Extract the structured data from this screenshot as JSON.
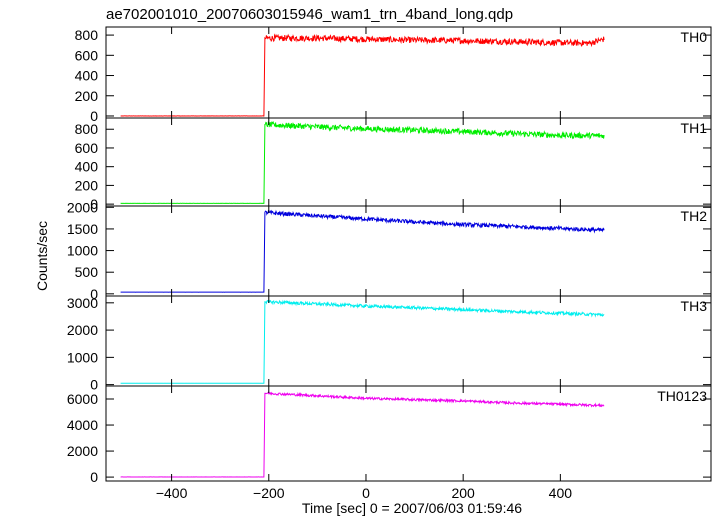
{
  "chart_data": {
    "type": "line",
    "title": "ae702001010_20070603015946_wam1_trn_4band_long.qdp",
    "xlabel": "Time [sec] 0 = 2007/06/03 01:59:46",
    "ylabel": "Counts/sec",
    "xlim": [
      -535,
      710
    ],
    "xticks": [
      -400,
      -200,
      0,
      200,
      400
    ],
    "grid": false,
    "panels": [
      {
        "name": "TH0",
        "color": "#ff0000",
        "ylim": [
          -20,
          880
        ],
        "yticks": [
          0,
          200,
          400,
          600,
          800
        ],
        "x": [
          -505,
          -210,
          -208,
          -100,
          0,
          100,
          200,
          300,
          400,
          460,
          490
        ],
        "y": [
          0,
          0,
          770,
          770,
          760,
          750,
          745,
          735,
          725,
          720,
          760
        ],
        "noise": 30
      },
      {
        "name": "TH1",
        "color": "#00ee00",
        "ylim": [
          -20,
          920
        ],
        "yticks": [
          0,
          200,
          400,
          600,
          800
        ],
        "x": [
          -505,
          -210,
          -208,
          -100,
          0,
          100,
          200,
          300,
          400,
          490
        ],
        "y": [
          8,
          8,
          850,
          825,
          805,
          790,
          775,
          755,
          735,
          730
        ],
        "noise": 30
      },
      {
        "name": "TH2",
        "color": "#0000dd",
        "ylim": [
          -50,
          2030
        ],
        "yticks": [
          0,
          500,
          1000,
          1500,
          2000
        ],
        "x": [
          -505,
          -210,
          -208,
          -100,
          0,
          100,
          200,
          300,
          400,
          490
        ],
        "y": [
          40,
          40,
          1880,
          1800,
          1730,
          1660,
          1600,
          1560,
          1510,
          1470
        ],
        "noise": 45
      },
      {
        "name": "TH3",
        "color": "#00eeee",
        "ylim": [
          -50,
          3250
        ],
        "yticks": [
          0,
          1000,
          2000,
          3000
        ],
        "x": [
          -505,
          -210,
          -208,
          -100,
          0,
          100,
          200,
          300,
          400,
          490
        ],
        "y": [
          50,
          50,
          3040,
          2960,
          2880,
          2820,
          2750,
          2680,
          2620,
          2560
        ],
        "noise": 55
      },
      {
        "name": "TH0123",
        "color": "#ee00ee",
        "ylim": [
          -300,
          7000
        ],
        "yticks": [
          0,
          2000,
          4000,
          6000
        ],
        "x": [
          -505,
          -210,
          -208,
          -100,
          0,
          100,
          200,
          300,
          400,
          490
        ],
        "y": [
          10,
          10,
          6450,
          6250,
          6050,
          5950,
          5850,
          5700,
          5600,
          5500
        ],
        "noise": 90
      }
    ]
  }
}
